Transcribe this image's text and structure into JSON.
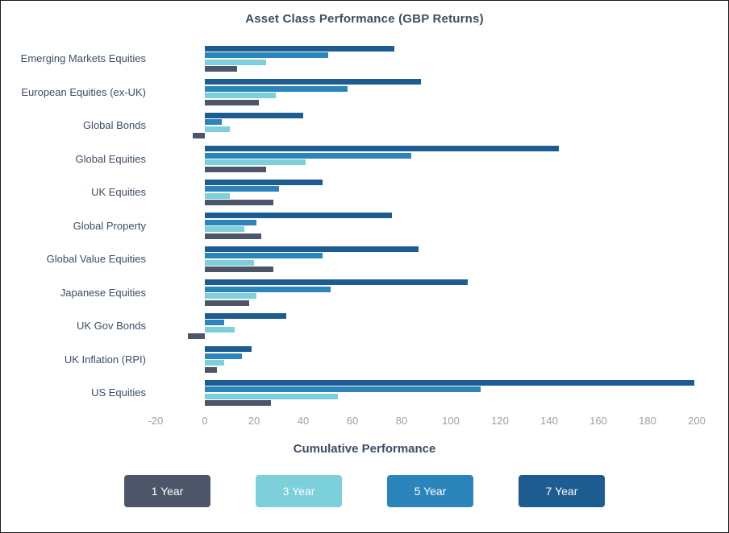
{
  "chart_data": {
    "type": "bar",
    "orientation": "horizontal",
    "title": "Asset Class Performance (GBP Returns)",
    "xlabel": "Cumulative Performance",
    "categories": [
      "Emerging Markets Equities",
      "European Equities (ex-UK)",
      "Global Bonds",
      "Global Equities",
      "UK Equities",
      "Global Property",
      "Global Value Equities",
      "Japanese Equities",
      "UK Gov Bonds",
      "UK Inflation (RPI)",
      "US Equities"
    ],
    "series": [
      {
        "name": "7 Year",
        "color": "#1c5c90",
        "values": [
          77,
          88,
          40,
          144,
          48,
          76,
          87,
          107,
          33,
          19,
          199
        ]
      },
      {
        "name": "5 Year",
        "color": "#2b85bb",
        "values": [
          50,
          58,
          7,
          84,
          30,
          21,
          48,
          51,
          8,
          15,
          112
        ]
      },
      {
        "name": "3 Year",
        "color": "#7bd0dc",
        "values": [
          25,
          29,
          10,
          41,
          10,
          16,
          20,
          21,
          12,
          8,
          54
        ]
      },
      {
        "name": "1 Year",
        "color": "#4d5669",
        "values": [
          13,
          22,
          -5,
          25,
          28,
          23,
          28,
          18,
          -7,
          5,
          27
        ]
      }
    ],
    "x_ticks": [
      -20,
      0,
      20,
      40,
      60,
      80,
      100,
      120,
      140,
      160,
      180,
      200
    ],
    "xlim": [
      -20,
      205
    ],
    "grid": false,
    "legend_position": "bottom",
    "legend": [
      {
        "label": "1 Year",
        "color": "#4d5669"
      },
      {
        "label": "3 Year",
        "color": "#7bd0dc"
      },
      {
        "label": "5 Year",
        "color": "#2b85bb"
      },
      {
        "label": "7 Year",
        "color": "#1c5c90"
      }
    ]
  }
}
